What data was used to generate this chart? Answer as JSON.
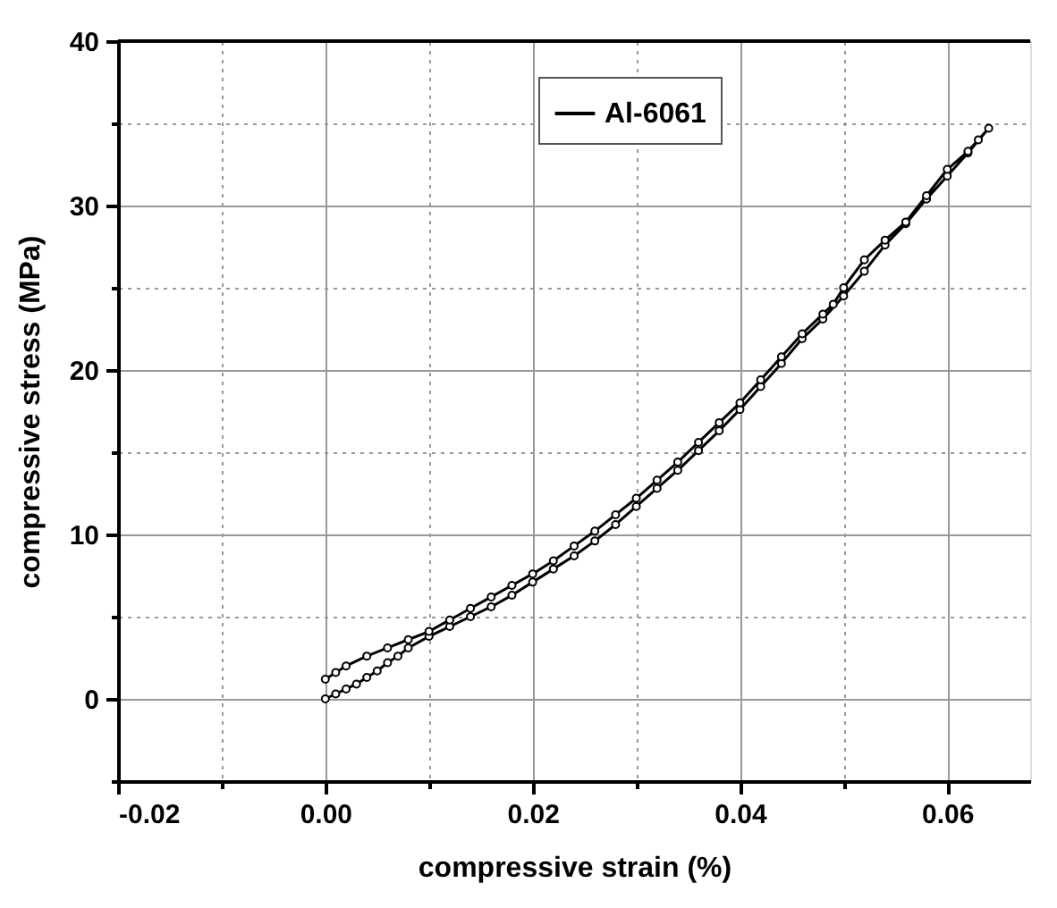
{
  "chart_data": {
    "type": "line",
    "xlabel": "compressive strain (%)",
    "ylabel": "compressive stress (MPa)",
    "series": [
      {
        "name": "Al-6061",
        "color": "#000000",
        "x": [
          0,
          0.001,
          0.002,
          0.003,
          0.004,
          0.005,
          0.006,
          0.007,
          0.008,
          0.01,
          0.012,
          0.014,
          0.016,
          0.018,
          0.02,
          0.022,
          0.024,
          0.026,
          0.028,
          0.03,
          0.032,
          0.034,
          0.036,
          0.038,
          0.04,
          0.042,
          0.044,
          0.046,
          0.048,
          0.05,
          0.052,
          0.054,
          0.056,
          0.058,
          0.06,
          0.062,
          0.064,
          0.063,
          0.062,
          0.06,
          0.058,
          0.056,
          0.054,
          0.052,
          0.05,
          0.049,
          0.048,
          0.046,
          0.044,
          0.042,
          0.04,
          0.038,
          0.036,
          0.034,
          0.032,
          0.03,
          0.028,
          0.026,
          0.024,
          0.022,
          0.02,
          0.018,
          0.016,
          0.014,
          0.012,
          0.01,
          0.008,
          0.006,
          0.004,
          0.002,
          0.001,
          0
        ],
        "values": [
          0,
          0.3,
          0.6,
          0.9,
          1.3,
          1.7,
          2.2,
          2.6,
          3.1,
          3.8,
          4.4,
          5.0,
          5.6,
          6.3,
          7.1,
          7.9,
          8.7,
          9.6,
          10.6,
          11.7,
          12.8,
          13.9,
          15.1,
          16.3,
          17.6,
          19.0,
          20.4,
          21.9,
          23.1,
          24.5,
          26.0,
          27.6,
          28.9,
          30.4,
          31.8,
          33.2,
          34.7,
          34.0,
          33.3,
          32.2,
          30.6,
          29.0,
          27.9,
          26.7,
          25.0,
          24.0,
          23.4,
          22.2,
          20.8,
          19.4,
          18.0,
          16.8,
          15.6,
          14.4,
          13.3,
          12.2,
          11.2,
          10.2,
          9.3,
          8.4,
          7.6,
          6.9,
          6.2,
          5.5,
          4.8,
          4.1,
          3.6,
          3.1,
          2.6,
          2.0,
          1.6,
          1.2
        ]
      }
    ],
    "xlim": [
      -0.02,
      0.068
    ],
    "xticks": [
      {
        "value": -0.02,
        "label": "-0.02"
      },
      {
        "value": -0.01,
        "label": null
      },
      {
        "value": 0,
        "label": "0.00"
      },
      {
        "value": 0.01,
        "label": null
      },
      {
        "value": 0.02,
        "label": "0.02"
      },
      {
        "value": 0.03,
        "label": null
      },
      {
        "value": 0.04,
        "label": "0.04"
      },
      {
        "value": 0.05,
        "label": null
      },
      {
        "value": 0.06,
        "label": "0.06"
      }
    ],
    "ylim": [
      -5,
      40
    ],
    "yticks": [
      {
        "value": -5,
        "label": null
      },
      0,
      {
        "value": 5,
        "label": null
      },
      10,
      {
        "value": 15,
        "label": null
      },
      20,
      {
        "value": 25,
        "label": null
      },
      30,
      {
        "value": 35,
        "label": null
      },
      40
    ],
    "grid": true,
    "legend": "top right",
    "marker": "circle",
    "line_style": "solid"
  }
}
